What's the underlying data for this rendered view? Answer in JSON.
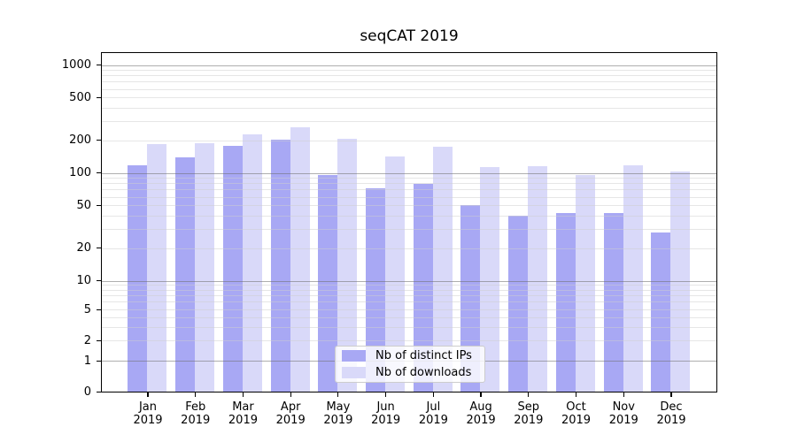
{
  "figure": {
    "title": "seqCAT 2019",
    "background_color": "#ffffff"
  },
  "chart_data": {
    "type": "bar",
    "title": "seqCAT 2019",
    "x": {
      "months": [
        "Jan",
        "Feb",
        "Mar",
        "Apr",
        "May",
        "Jun",
        "Jul",
        "Aug",
        "Sep",
        "Oct",
        "Nov",
        "Dec"
      ],
      "year": "2019"
    },
    "series": [
      {
        "name": "Nb of distinct IPs",
        "color": "#a8a8f4",
        "values": [
          118,
          138,
          179,
          202,
          96,
          72,
          79,
          50,
          40,
          42,
          42,
          28
        ]
      },
      {
        "name": "Nb of downloads",
        "color": "#d9d9f9",
        "values": [
          184,
          189,
          228,
          264,
          205,
          141,
          175,
          114,
          116,
          96,
          117,
          102
        ]
      }
    ],
    "xlabel": "",
    "ylabel": "",
    "yscale": "symlog",
    "ylim": [
      0,
      1350
    ],
    "yticks": [
      1000,
      500,
      200,
      100,
      50,
      20,
      10,
      5,
      2,
      1,
      0
    ],
    "grid": true,
    "legend_position": "lower center"
  }
}
